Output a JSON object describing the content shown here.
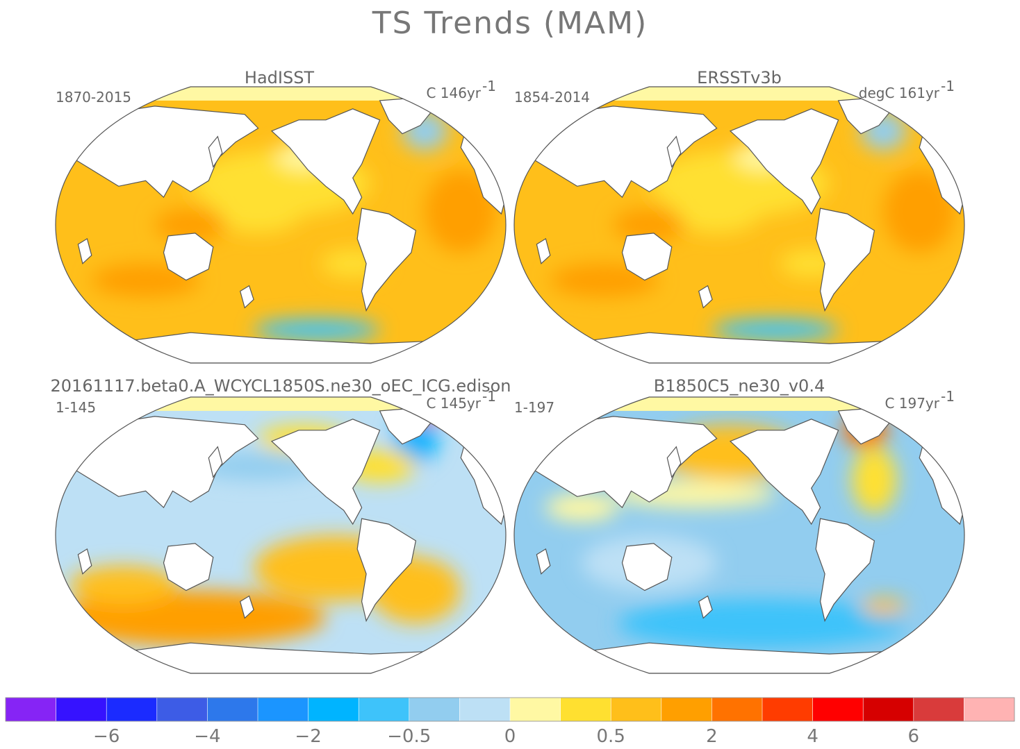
{
  "figure": {
    "title": "TS Trends (MAM)"
  },
  "panels": [
    {
      "title": "HadISST",
      "period": "1870-2015",
      "units_prefix": "C 146yr",
      "units_exp": "-1",
      "pattern": "obs-warm"
    },
    {
      "title": "ERSSTv3b",
      "period": "1854-2014",
      "units_prefix": "degC 161yr",
      "units_exp": "-1",
      "pattern": "obs-warm"
    },
    {
      "title": "20161117.beta0.A_WCYCL1850S.ne30_oEC_ICG.edison",
      "period": "1-145",
      "units_prefix": "C 145yr",
      "units_exp": "-1",
      "pattern": "model-a"
    },
    {
      "title": "B1850C5_ne30_v0.4",
      "period": "1-197",
      "units_prefix": "C 197yr",
      "units_exp": "-1",
      "pattern": "model-b"
    }
  ],
  "colorbar": {
    "colors": [
      "#8624f5",
      "#3612ff",
      "#1b2bff",
      "#3d5ce6",
      "#2d78eb",
      "#1b95ff",
      "#00b4ff",
      "#3ec3fa",
      "#92cdef",
      "#bde0f5",
      "#fff8a3",
      "#ffe030",
      "#ffbf1a",
      "#ff9f00",
      "#ff7200",
      "#ff3c00",
      "#ff0000",
      "#d60000",
      "#d93b3b",
      "#ffb3b3"
    ],
    "tick_labels": [
      "-6",
      "-4",
      "-2",
      "-0.5",
      "0",
      "0.5",
      "2",
      "4",
      "6"
    ]
  }
}
